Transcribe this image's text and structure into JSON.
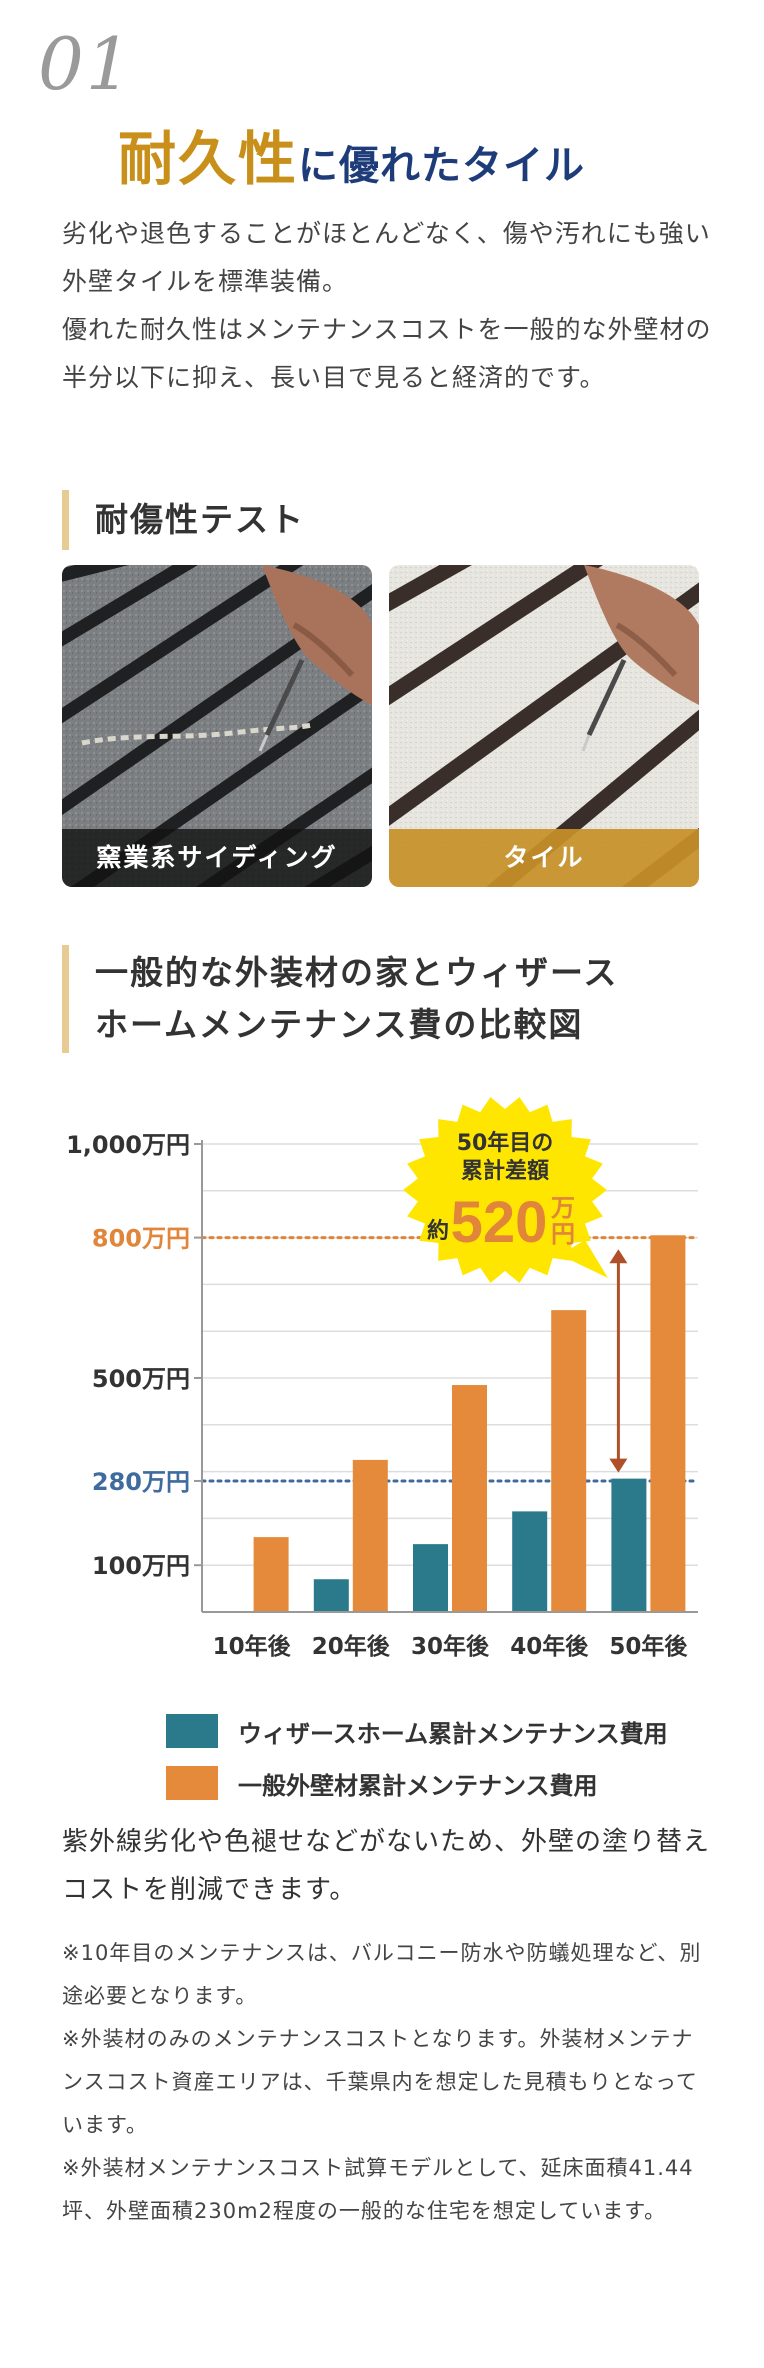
{
  "number_label": "01",
  "headline": {
    "emphasis": "耐久性",
    "rest": "に優れたタイル"
  },
  "intro": [
    "劣化や退色することがほとんどなく、傷や汚れにも強い外壁タイルを標準装備。",
    "優れた耐久性はメンテナンスコストを一般的な外壁材の半分以下に抑え、長い目で見ると経済的です。"
  ],
  "test_section": {
    "title": "耐傷性テスト",
    "photos": [
      {
        "caption": "窯業系サイディング"
      },
      {
        "caption": "タイル"
      }
    ]
  },
  "comparison_section": {
    "title_line1": "一般的な外装材の家とウィザース",
    "title_line2": "ホームメンテナンス費の比較図"
  },
  "chart_data": {
    "type": "bar",
    "categories": [
      "10年後",
      "20年後",
      "30年後",
      "40年後",
      "50年後"
    ],
    "series": [
      {
        "name": "ウィザースホーム累計メンテナンス費用",
        "color": "#2a7a8c",
        "values": [
          0,
          70,
          145,
          215,
          285
        ]
      },
      {
        "name": "一般外壁材累計メンテナンス費用",
        "color": "#e58a3a",
        "values": [
          160,
          325,
          485,
          645,
          805
        ]
      }
    ],
    "ylim": [
      0,
      1000
    ],
    "y_tick_labels": [
      {
        "value": 1000,
        "label": "1,000万円",
        "color": "#333333"
      },
      {
        "value": 800,
        "label": "800万円",
        "color": "#e0853a"
      },
      {
        "value": 500,
        "label": "500万円",
        "color": "#333333"
      },
      {
        "value": 280,
        "label": "280万円",
        "color": "#3f6b9e"
      },
      {
        "value": 100,
        "label": "100万円",
        "color": "#333333"
      }
    ],
    "reference_lines": [
      {
        "value": 800,
        "color": "#e0853a"
      },
      {
        "value": 280,
        "color": "#3f6b9e"
      }
    ],
    "callout": {
      "line1": "50年目の",
      "line2": "累計差額",
      "prefix": "約",
      "amount": "520",
      "unit_top": "万",
      "unit_bottom": "円",
      "background": "#ffe600",
      "amount_color": "#e0853a"
    },
    "grid": true,
    "legend_position": "bottom"
  },
  "summary": "紫外線劣化や色褪せなどがないため、外壁の塗り替えコストを削減できます。",
  "notes": [
    "※10年目のメンテナンスは、バルコニー防水や防蟻処理など、別途必要となります。",
    "※外装材のみのメンテナンスコストとなります。外装材メンテナンスコスト資産エリアは、千葉県内を想定した見積もりとなっています。",
    "※外装材メンテナンスコスト試算モデルとして、延床面積41.44坪、外壁面積230m2程度の一般的な住宅を想定しています。"
  ]
}
